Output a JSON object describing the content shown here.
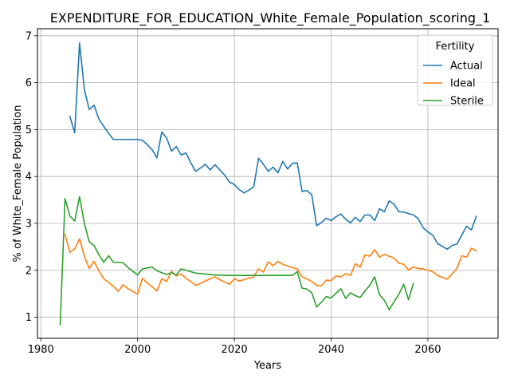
{
  "chart_data": {
    "type": "line",
    "title": "EXPENDITURE_FOR_EDUCATION_White_Female_Population_scoring_1",
    "xlabel": "Years",
    "ylabel": "% of White_Female Population",
    "xlim": [
      1979.3,
      2074.5
    ],
    "ylim": [
      0.55,
      7.15
    ],
    "xticks": [
      1980,
      2000,
      2020,
      2040,
      2060
    ],
    "yticks": [
      1,
      2,
      3,
      4,
      5,
      6,
      7
    ],
    "grid": true,
    "legend": {
      "title": "Fertility",
      "position": "top-right"
    },
    "series": [
      {
        "name": "Actual",
        "color": "#1f77b4",
        "points": [
          [
            1986,
            5.28
          ],
          [
            1987,
            4.93
          ],
          [
            1988,
            6.85
          ],
          [
            1989,
            5.85
          ],
          [
            1990,
            5.43
          ],
          [
            1991,
            5.52
          ],
          [
            1992,
            5.22
          ],
          [
            1993,
            5.07
          ],
          [
            1994,
            4.92
          ],
          [
            1995,
            4.79
          ],
          [
            1996,
            4.79
          ],
          [
            1997,
            4.79
          ],
          [
            1998,
            4.79
          ],
          [
            1999,
            4.79
          ],
          [
            2000,
            4.79
          ],
          [
            2001,
            4.77
          ],
          [
            2002,
            4.68
          ],
          [
            2003,
            4.57
          ],
          [
            2004,
            4.4
          ],
          [
            2005,
            4.95
          ],
          [
            2006,
            4.82
          ],
          [
            2007,
            4.54
          ],
          [
            2008,
            4.64
          ],
          [
            2009,
            4.46
          ],
          [
            2010,
            4.5
          ],
          [
            2011,
            4.29
          ],
          [
            2012,
            4.11
          ],
          [
            2013,
            4.18
          ],
          [
            2014,
            4.26
          ],
          [
            2015,
            4.14
          ],
          [
            2016,
            4.25
          ],
          [
            2017,
            4.14
          ],
          [
            2018,
            4.03
          ],
          [
            2019,
            3.88
          ],
          [
            2020,
            3.83
          ],
          [
            2021,
            3.72
          ],
          [
            2022,
            3.65
          ],
          [
            2023,
            3.71
          ],
          [
            2024,
            3.78
          ],
          [
            2025,
            4.39
          ],
          [
            2026,
            4.26
          ],
          [
            2027,
            4.11
          ],
          [
            2028,
            4.2
          ],
          [
            2029,
            4.08
          ],
          [
            2030,
            4.32
          ],
          [
            2031,
            4.16
          ],
          [
            2032,
            4.28
          ],
          [
            2033,
            4.29
          ],
          [
            2034,
            3.68
          ],
          [
            2035,
            3.7
          ],
          [
            2036,
            3.61
          ],
          [
            2037,
            2.95
          ],
          [
            2038,
            3.02
          ],
          [
            2039,
            3.11
          ],
          [
            2040,
            3.06
          ],
          [
            2041,
            3.14
          ],
          [
            2042,
            3.2
          ],
          [
            2043,
            3.09
          ],
          [
            2044,
            3.01
          ],
          [
            2045,
            3.13
          ],
          [
            2046,
            3.04
          ],
          [
            2047,
            3.18
          ],
          [
            2048,
            3.18
          ],
          [
            2049,
            3.06
          ],
          [
            2050,
            3.31
          ],
          [
            2051,
            3.25
          ],
          [
            2052,
            3.48
          ],
          [
            2053,
            3.41
          ],
          [
            2054,
            3.25
          ],
          [
            2055,
            3.24
          ],
          [
            2056,
            3.21
          ],
          [
            2057,
            3.18
          ],
          [
            2058,
            3.1
          ],
          [
            2059,
            2.91
          ],
          [
            2060,
            2.82
          ],
          [
            2061,
            2.75
          ],
          [
            2062,
            2.57
          ],
          [
            2063,
            2.51
          ],
          [
            2064,
            2.45
          ],
          [
            2065,
            2.53
          ],
          [
            2066,
            2.56
          ],
          [
            2067,
            2.75
          ],
          [
            2068,
            2.94
          ],
          [
            2069,
            2.86
          ],
          [
            2070,
            3.15
          ]
        ]
      },
      {
        "name": "Ideal",
        "color": "#ff7f0e",
        "points": [
          [
            1985,
            2.77
          ],
          [
            1986,
            2.38
          ],
          [
            1987,
            2.46
          ],
          [
            1988,
            2.67
          ],
          [
            1989,
            2.3
          ],
          [
            1990,
            2.04
          ],
          [
            1991,
            2.19
          ],
          [
            1992,
            1.99
          ],
          [
            1993,
            1.82
          ],
          [
            1994,
            1.74
          ],
          [
            1995,
            1.66
          ],
          [
            1996,
            1.55
          ],
          [
            1997,
            1.69
          ],
          [
            1998,
            1.61
          ],
          [
            1999,
            1.55
          ],
          [
            2000,
            1.49
          ],
          [
            2001,
            1.83
          ],
          [
            2002,
            1.73
          ],
          [
            2003,
            1.65
          ],
          [
            2004,
            1.56
          ],
          [
            2005,
            1.82
          ],
          [
            2006,
            1.76
          ],
          [
            2007,
            1.98
          ],
          [
            2008,
            1.88
          ],
          [
            2009,
            1.92
          ],
          [
            2010,
            1.83
          ],
          [
            2011,
            1.76
          ],
          [
            2012,
            1.68
          ],
          [
            2013,
            1.72
          ],
          [
            2014,
            1.77
          ],
          [
            2015,
            1.82
          ],
          [
            2016,
            1.86
          ],
          [
            2017,
            1.8
          ],
          [
            2018,
            1.75
          ],
          [
            2019,
            1.7
          ],
          [
            2020,
            1.82
          ],
          [
            2021,
            1.77
          ],
          [
            2022,
            1.8
          ],
          [
            2023,
            1.83
          ],
          [
            2024,
            1.86
          ],
          [
            2025,
            2.03
          ],
          [
            2026,
            1.96
          ],
          [
            2027,
            2.18
          ],
          [
            2028,
            2.1
          ],
          [
            2029,
            2.19
          ],
          [
            2030,
            2.13
          ],
          [
            2031,
            2.09
          ],
          [
            2032,
            2.06
          ],
          [
            2033,
            2.03
          ],
          [
            2034,
            1.86
          ],
          [
            2035,
            1.82
          ],
          [
            2036,
            1.76
          ],
          [
            2037,
            1.68
          ],
          [
            2038,
            1.67
          ],
          [
            2039,
            1.79
          ],
          [
            2040,
            1.78
          ],
          [
            2041,
            1.88
          ],
          [
            2042,
            1.86
          ],
          [
            2043,
            1.93
          ],
          [
            2044,
            1.89
          ],
          [
            2045,
            2.14
          ],
          [
            2046,
            2.07
          ],
          [
            2047,
            2.33
          ],
          [
            2048,
            2.3
          ],
          [
            2049,
            2.44
          ],
          [
            2050,
            2.28
          ],
          [
            2051,
            2.34
          ],
          [
            2052,
            2.3
          ],
          [
            2053,
            2.26
          ],
          [
            2054,
            2.15
          ],
          [
            2055,
            2.13
          ],
          [
            2056,
            2.01
          ],
          [
            2057,
            2.07
          ],
          [
            2058,
            2.04
          ],
          [
            2059,
            2.03
          ],
          [
            2060,
            2.0
          ],
          [
            2061,
            1.97
          ],
          [
            2062,
            1.89
          ],
          [
            2063,
            1.85
          ],
          [
            2064,
            1.81
          ],
          [
            2065,
            1.92
          ],
          [
            2066,
            2.04
          ],
          [
            2067,
            2.31
          ],
          [
            2068,
            2.28
          ],
          [
            2069,
            2.47
          ],
          [
            2070,
            2.42
          ]
        ]
      },
      {
        "name": "Sterile",
        "color": "#2ca02c",
        "points": [
          [
            1984,
            0.84
          ],
          [
            1985,
            3.53
          ],
          [
            1986,
            3.16
          ],
          [
            1987,
            3.05
          ],
          [
            1988,
            3.57
          ],
          [
            1989,
            3.0
          ],
          [
            1990,
            2.61
          ],
          [
            1991,
            2.53
          ],
          [
            1992,
            2.33
          ],
          [
            1993,
            2.17
          ],
          [
            1994,
            2.31
          ],
          [
            1995,
            2.17
          ],
          [
            1996,
            2.17
          ],
          [
            1997,
            2.16
          ],
          [
            1998,
            2.06
          ],
          [
            1999,
            1.98
          ],
          [
            2000,
            1.9
          ],
          [
            2001,
            2.03
          ],
          [
            2002,
            2.05
          ],
          [
            2003,
            2.07
          ],
          [
            2004,
            1.99
          ],
          [
            2005,
            1.95
          ],
          [
            2006,
            1.91
          ],
          [
            2007,
            1.95
          ],
          [
            2008,
            1.9
          ],
          [
            2009,
            2.03
          ],
          [
            2010,
            2.0
          ],
          [
            2011,
            1.97
          ],
          [
            2012,
            1.94
          ],
          [
            2013,
            1.93
          ],
          [
            2014,
            1.92
          ],
          [
            2015,
            1.91
          ],
          [
            2016,
            1.9
          ],
          [
            2017,
            1.9
          ],
          [
            2018,
            1.89
          ],
          [
            2019,
            1.89
          ],
          [
            2020,
            1.89
          ],
          [
            2021,
            1.89
          ],
          [
            2022,
            1.89
          ],
          [
            2023,
            1.89
          ],
          [
            2024,
            1.89
          ],
          [
            2025,
            1.89
          ],
          [
            2026,
            1.89
          ],
          [
            2027,
            1.89
          ],
          [
            2028,
            1.89
          ],
          [
            2029,
            1.89
          ],
          [
            2030,
            1.89
          ],
          [
            2031,
            1.89
          ],
          [
            2032,
            1.89
          ],
          [
            2033,
            1.97
          ],
          [
            2034,
            1.62
          ],
          [
            2035,
            1.6
          ],
          [
            2036,
            1.52
          ],
          [
            2037,
            1.22
          ],
          [
            2038,
            1.32
          ],
          [
            2039,
            1.44
          ],
          [
            2040,
            1.41
          ],
          [
            2041,
            1.51
          ],
          [
            2042,
            1.61
          ],
          [
            2043,
            1.4
          ],
          [
            2044,
            1.52
          ],
          [
            2045,
            1.46
          ],
          [
            2046,
            1.42
          ],
          [
            2047,
            1.56
          ],
          [
            2048,
            1.68
          ],
          [
            2049,
            1.86
          ],
          [
            2050,
            1.48
          ],
          [
            2051,
            1.36
          ],
          [
            2052,
            1.16
          ],
          [
            2053,
            1.33
          ],
          [
            2054,
            1.49
          ],
          [
            2055,
            1.7
          ],
          [
            2056,
            1.37
          ],
          [
            2057,
            1.72
          ]
        ]
      }
    ]
  }
}
